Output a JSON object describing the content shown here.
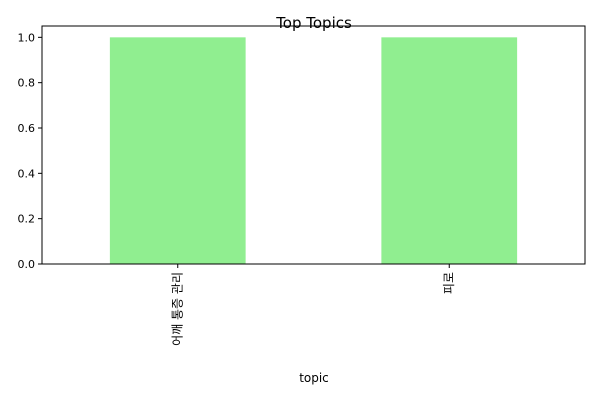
{
  "chart_data": {
    "type": "bar",
    "title": "Top Topics",
    "xlabel": "topic",
    "ylabel": "",
    "categories": [
      "어깨 통증 관리",
      "피로"
    ],
    "values": [
      1.0,
      1.0
    ],
    "ylim": [
      0,
      1.05
    ],
    "yticks": [
      "0.0",
      "0.2",
      "0.4",
      "0.6",
      "0.8",
      "1.0"
    ],
    "grid": false,
    "legend": "none",
    "colors": {
      "bar": "#90ee90",
      "axis": "#000000",
      "background": "#ffffff"
    }
  }
}
